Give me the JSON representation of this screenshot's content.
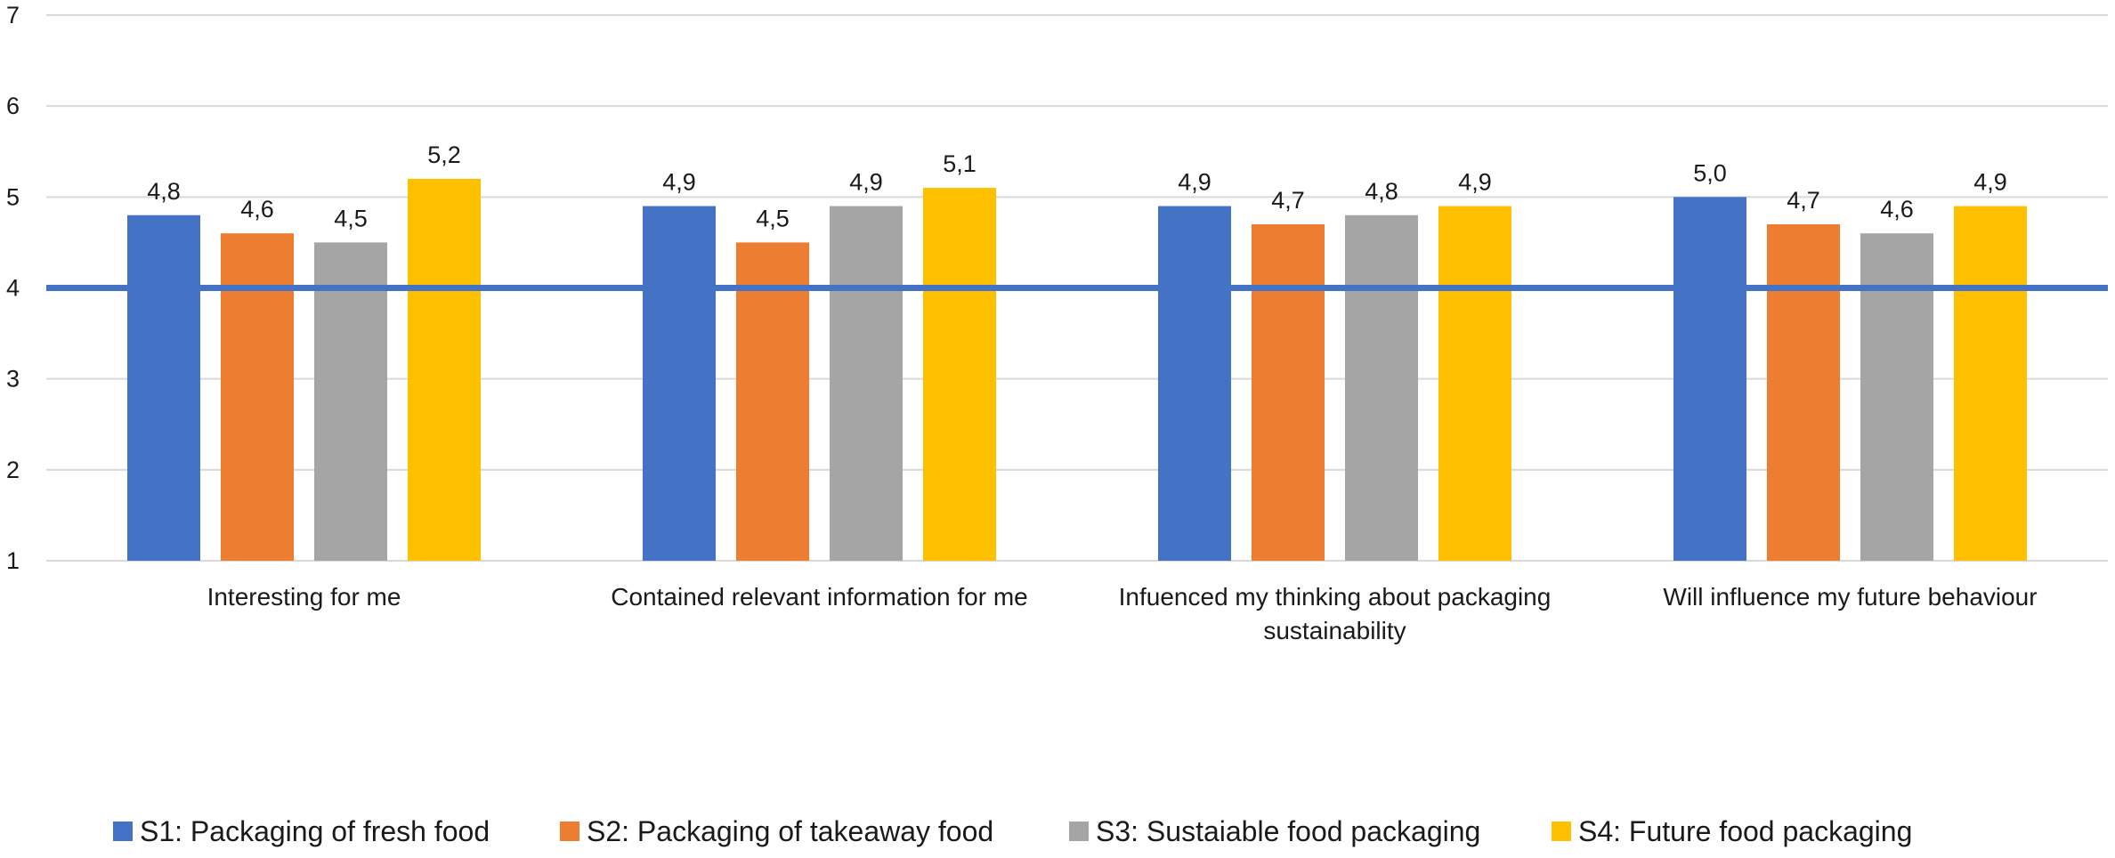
{
  "chart_data": {
    "type": "bar",
    "title": "",
    "xlabel": "",
    "ylabel": "",
    "ylim": [
      1,
      7
    ],
    "yticks": [
      "1",
      "2",
      "3",
      "4",
      "5",
      "6",
      "7"
    ],
    "grid": true,
    "legend_position": "bottom",
    "reference_line": {
      "value": 4,
      "color": "#4472c4"
    },
    "categories": [
      [
        "Interesting for me"
      ],
      [
        "Contained relevant information for me"
      ],
      [
        "Infuenced my thinking about packaging",
        "sustainability"
      ],
      [
        "Will influence my future behaviour"
      ]
    ],
    "series": [
      {
        "name": "S1: Packaging of fresh food",
        "color": "#4472c4",
        "values": [
          4.8,
          4.9,
          4.9,
          5.0
        ],
        "labels": [
          "4,8",
          "4,9",
          "4,9",
          "5,0"
        ]
      },
      {
        "name": "S2: Packaging of takeaway food",
        "color": "#ed7d31",
        "values": [
          4.6,
          4.5,
          4.7,
          4.7
        ],
        "labels": [
          "4,6",
          "4,5",
          "4,7",
          "4,7"
        ]
      },
      {
        "name": "S3: Sustaiable food packaging",
        "color": "#a5a5a5",
        "values": [
          4.5,
          4.9,
          4.8,
          4.6
        ],
        "labels": [
          "4,5",
          "4,9",
          "4,8",
          "4,6"
        ]
      },
      {
        "name": "S4: Future food packaging",
        "color": "#ffc000",
        "values": [
          5.2,
          5.1,
          4.9,
          4.9
        ],
        "labels": [
          "5,2",
          "5,1",
          "4,9",
          "4,9"
        ]
      }
    ]
  }
}
